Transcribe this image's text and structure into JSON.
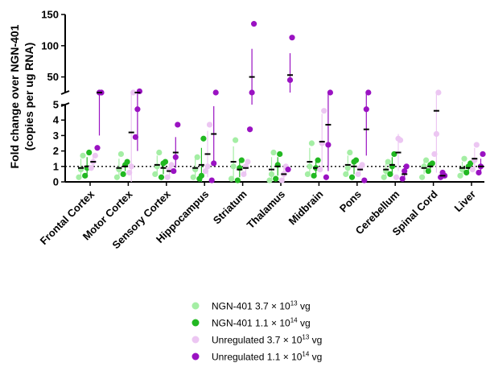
{
  "chart_data": {
    "type": "scatter",
    "ylabel_line1": "Fold change over NGN-401",
    "ylabel_line2": "(copies per ug RNA)",
    "y_axis": "broken",
    "y_lower_range": [
      0,
      5
    ],
    "y_upper_range": [
      25,
      150
    ],
    "y_lower_ticks": [
      "0",
      "1",
      "2",
      "3",
      "4",
      "5"
    ],
    "y_upper_ticks": [
      "50",
      "100",
      "150"
    ],
    "reference_line": 1,
    "categories": [
      "Frontal Cortex",
      "Motor Cortex",
      "Sensory Cortex",
      "Hippocampus",
      "Striatum",
      "Thalamus",
      "Midbrain",
      "Pons",
      "Cerebellum",
      "Spinal Cord",
      "Liver"
    ],
    "series": [
      {
        "name_prefix": "NGN-401 3.7 × 10",
        "name_exp": "13",
        "name_suffix": " vg",
        "color": "#a4eea4",
        "points": [
          [
            0.3,
            0.8,
            1.7
          ],
          [
            0.3,
            0.8,
            1.8
          ],
          [
            0.5,
            1.0,
            1.9
          ],
          [
            0.3,
            0.8,
            1.6
          ],
          [
            0.2,
            1.0,
            2.7
          ],
          [
            0.1,
            0.5,
            1.9
          ],
          [
            0.5,
            1.0,
            2.5
          ],
          [
            0.5,
            0.9,
            1.9
          ],
          [
            0.3,
            0.7,
            1.3
          ],
          [
            0.3,
            1.0,
            1.4
          ],
          [
            0.4,
            0.8,
            1.5
          ]
        ],
        "mean": [
          0.9,
          0.9,
          1.1,
          0.9,
          1.3,
          0.8,
          1.3,
          1.1,
          0.8,
          0.9,
          0.9
        ],
        "err": [
          0.6,
          0.6,
          0.6,
          0.6,
          1.0,
          0.8,
          0.9,
          0.6,
          0.4,
          0.4,
          0.4
        ]
      },
      {
        "name_prefix": "NGN-401 1.1 × 10",
        "name_exp": "14",
        "name_suffix": " vg",
        "color": "#22b822",
        "points": [
          [
            0.4,
            0.9,
            1.9
          ],
          [
            0.5,
            1.1,
            1.3
          ],
          [
            0.3,
            1.2,
            1.3
          ],
          [
            0.2,
            0.4,
            2.8
          ],
          [
            0.1,
            0.9,
            1.4
          ],
          [
            0.2,
            1.1,
            1.8
          ],
          [
            0.4,
            0.9,
            1.4
          ],
          [
            0.3,
            1.3,
            1.4
          ],
          [
            0.5,
            1.0,
            1.8
          ],
          [
            0.7,
            1.1,
            1.2
          ],
          [
            0.6,
            1.0,
            1.2
          ]
        ],
        "mean": [
          1.0,
          1.0,
          0.9,
          1.1,
          0.8,
          1.0,
          0.9,
          1.0,
          1.1,
          1.0,
          0.9
        ],
        "err": [
          0.6,
          0.3,
          0.4,
          1.1,
          0.5,
          0.6,
          0.4,
          0.5,
          0.5,
          0.2,
          0.3
        ]
      },
      {
        "name_prefix": "Unregulated 3.7 × 10",
        "name_exp": "13",
        "name_suffix": " vg",
        "color": "#ecc6f2",
        "points": [
          [
            0.9,
            1.3,
            1.7
          ],
          [
            0.6,
            1.0,
            10.5
          ],
          [
            0.3,
            0.8,
            1.1
          ],
          [
            0.7,
            1.0,
            3.7
          ],
          [
            0.5,
            1.0,
            1.3
          ],
          [
            0.1,
            0.5,
            1.0
          ],
          [
            0.8,
            2.5,
            4.6
          ],
          [
            0.5,
            0.9,
            1.1
          ],
          [
            0.3,
            2.8,
            2.7
          ],
          [
            1.8,
            3.1,
            11.0
          ],
          [
            0.8,
            1.4,
            2.4
          ]
        ],
        "mean": [
          1.3,
          3.2,
          0.7,
          1.8,
          0.9,
          0.5,
          2.6,
          0.8,
          1.9,
          4.6,
          1.5
        ],
        "err": [
          0.4,
          4.5,
          0.4,
          1.5,
          0.4,
          0.4,
          1.8,
          0.3,
          1.2,
          4.0,
          0.7
        ]
      },
      {
        "name_prefix": "Unregulated 1.1 × 10",
        "name_exp": "14",
        "name_suffix": " vg",
        "color": "#9a12c2",
        "points": [
          [
            2.2,
            10.0,
            9.5
          ],
          [
            2.9,
            4.7,
            27.0
          ],
          [
            0.7,
            1.6,
            3.7
          ],
          [
            0.1,
            1.2,
            10.0
          ],
          [
            3.4,
            17.0,
            135.0
          ],
          [
            0.8,
            45.0,
            113.0
          ],
          [
            0.3,
            2.4,
            8.5
          ],
          [
            0.1,
            4.7,
            8.5
          ],
          [
            0.2,
            0.7,
            1.0
          ],
          [
            0.3,
            0.6,
            0.4
          ],
          [
            0.6,
            1.0,
            1.8
          ]
        ],
        "mean": [
          7.0,
          12.0,
          1.9,
          3.1,
          50.0,
          53.0,
          3.7,
          3.4,
          0.5,
          0.4,
          1.0
        ],
        "err": [
          4.0,
          10.0,
          1.0,
          1.8,
          45.0,
          35.0,
          3.0,
          1.7,
          0.4,
          0.2,
          0.5
        ]
      }
    ]
  }
}
